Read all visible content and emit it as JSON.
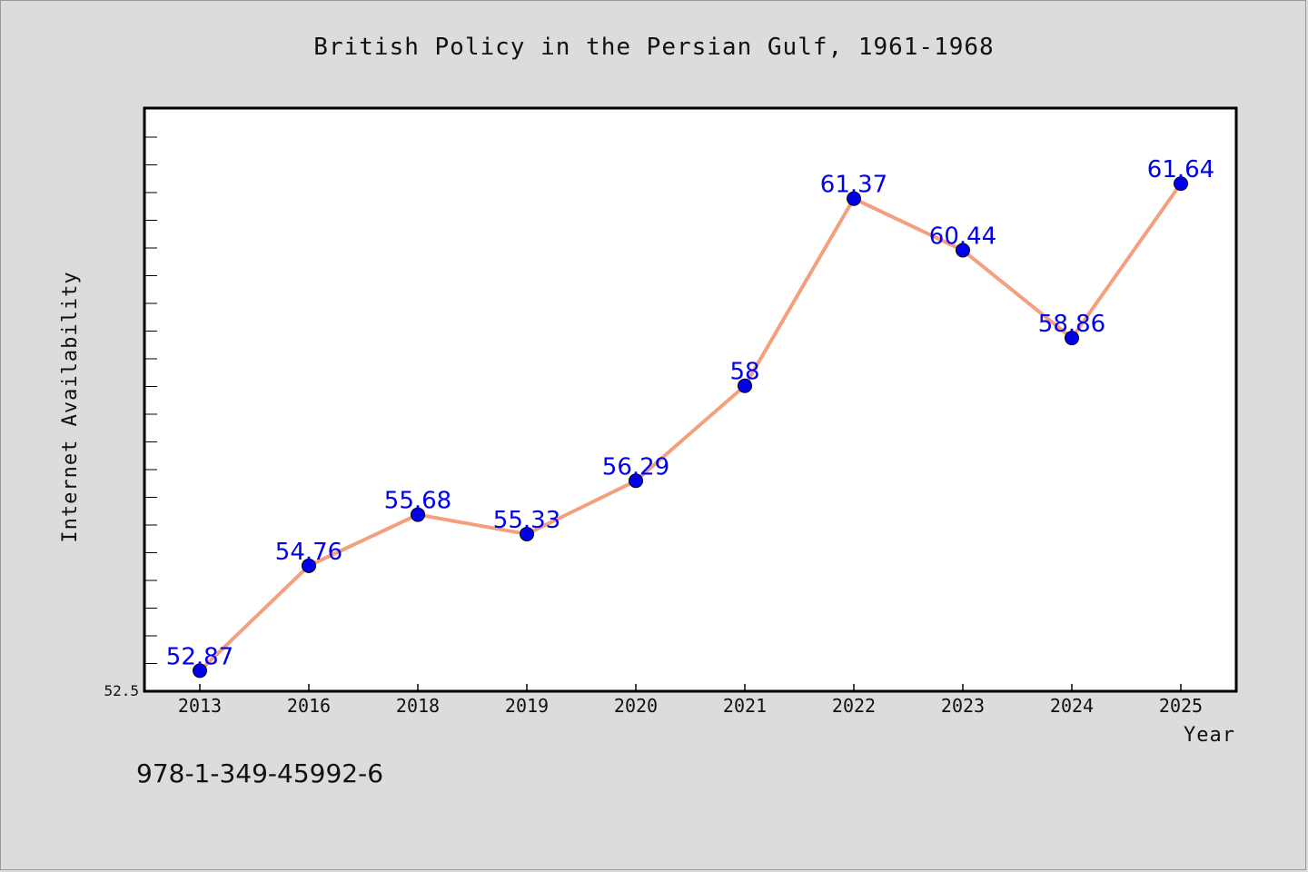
{
  "chart_data": {
    "type": "line",
    "title": "British Policy in the Persian Gulf, 1961-1968",
    "xlabel": "Year",
    "ylabel": "Internet Availability",
    "categories": [
      "2013",
      "2016",
      "2018",
      "2019",
      "2020",
      "2021",
      "2022",
      "2023",
      "2024",
      "2025"
    ],
    "series": [
      {
        "values": [
          52.87,
          54.76,
          55.68,
          55.33,
          56.29,
          58,
          61.37,
          60.44,
          58.86,
          61.64
        ],
        "labels": [
          "52.87",
          "54.76",
          "55.68",
          "55.33",
          "56.29",
          "58",
          "61.37",
          "60.44",
          "58.86",
          "61.64"
        ],
        "line_color": "#f4a07e",
        "marker_color": "#0000ee"
      }
    ],
    "ylim": [
      52.5,
      63.0
    ],
    "y_min_label": "52.5",
    "grid": false,
    "colors": {
      "label_color": "#0000ee",
      "line_color": "#f4a07e",
      "plot_bg": "#ffffff",
      "page_bg": "#dcdcdc"
    }
  },
  "footer": {
    "isbn": "978-1-349-45992-6"
  }
}
